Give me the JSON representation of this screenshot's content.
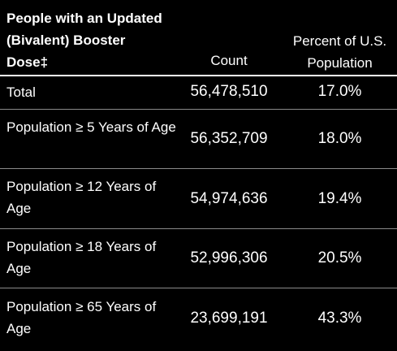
{
  "table": {
    "header": {
      "title": "People with an Updated (Bivalent) Booster Dose‡",
      "count_label": "Count",
      "percent_label_line1": "Percent of U.S.",
      "percent_label_line2": "Population"
    },
    "rows": [
      {
        "label": "Total",
        "count": "56,478,510",
        "percent": "17.0%"
      },
      {
        "label": "Population ≥ 5 Years of Age",
        "count": "56,352,709",
        "percent": "18.0%"
      },
      {
        "label": "Population ≥ 12 Years of Age",
        "count": "54,974,636",
        "percent": "19.4%"
      },
      {
        "label": "Population ≥ 18 Years of Age",
        "count": "52,996,306",
        "percent": "20.5%"
      },
      {
        "label": "Population ≥ 65 Years of Age",
        "count": "23,699,191",
        "percent": "43.3%"
      }
    ]
  }
}
